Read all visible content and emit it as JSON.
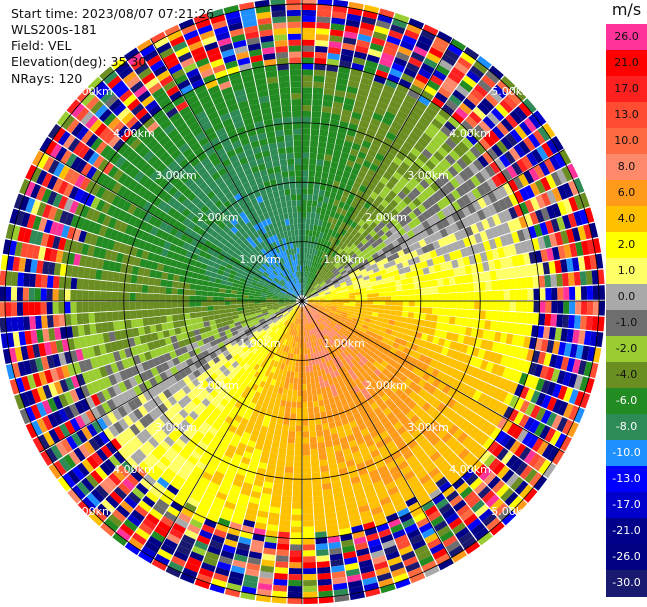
{
  "header": {
    "start_time": "Start time: 2023/08/07 07:21:26",
    "instrument": "WLS200s-181",
    "field": "Field: VEL",
    "elevation": "Elevation(deg): 35.30",
    "nrays": "NRays: 120"
  },
  "colorbar": {
    "units": "m/s",
    "bins": [
      {
        "label": "26.0",
        "color": "#ff3399"
      },
      {
        "label": "21.0",
        "color": "#ff0000"
      },
      {
        "label": "17.0",
        "color": "#ff2020"
      },
      {
        "label": "13.0",
        "color": "#ff4c33"
      },
      {
        "label": "10.0",
        "color": "#ff6b40"
      },
      {
        "label": "8.0",
        "color": "#ff8a6b"
      },
      {
        "label": "6.0",
        "color": "#ff9a1a"
      },
      {
        "label": "4.0",
        "color": "#ffc000"
      },
      {
        "label": "2.0",
        "color": "#ffff00"
      },
      {
        "label": "1.0",
        "color": "#ffff66"
      },
      {
        "label": "0.0",
        "color": "#a9a9a9"
      },
      {
        "label": "-1.0",
        "color": "#6e6e6e"
      },
      {
        "label": "-2.0",
        "color": "#9acd32"
      },
      {
        "label": "-4.0",
        "color": "#6b8e23"
      },
      {
        "label": "-6.0",
        "color": "#228b22"
      },
      {
        "label": "-8.0",
        "color": "#2e8b57"
      },
      {
        "label": "-10.0",
        "color": "#1e90ff"
      },
      {
        "label": "-13.0",
        "color": "#0000ff"
      },
      {
        "label": "-17.0",
        "color": "#0000cd"
      },
      {
        "label": "-21.0",
        "color": "#00008b"
      },
      {
        "label": "-26.0",
        "color": "#000080"
      },
      {
        "label": "-30.0",
        "color": "#191970"
      }
    ]
  },
  "chart_data": {
    "type": "heatmap",
    "subtype": "radar-ppi",
    "field": "VEL",
    "units": "m/s",
    "elevation_deg": 35.3,
    "n_rays": 120,
    "range_rings_km": [
      1,
      2,
      3,
      4,
      5
    ],
    "ring_labels": [
      "1.00km",
      "2.00km",
      "3.00km",
      "4.00km",
      "5.00km"
    ],
    "max_range_km": 5.1,
    "velocity_pattern": {
      "approaching_max_azimuth_deg": 315,
      "receding_max_azimuth_deg": 150,
      "near_range_peak_ms": 9,
      "far_range_peak_ms": 5,
      "noise_beyond_km": 4.0
    }
  }
}
